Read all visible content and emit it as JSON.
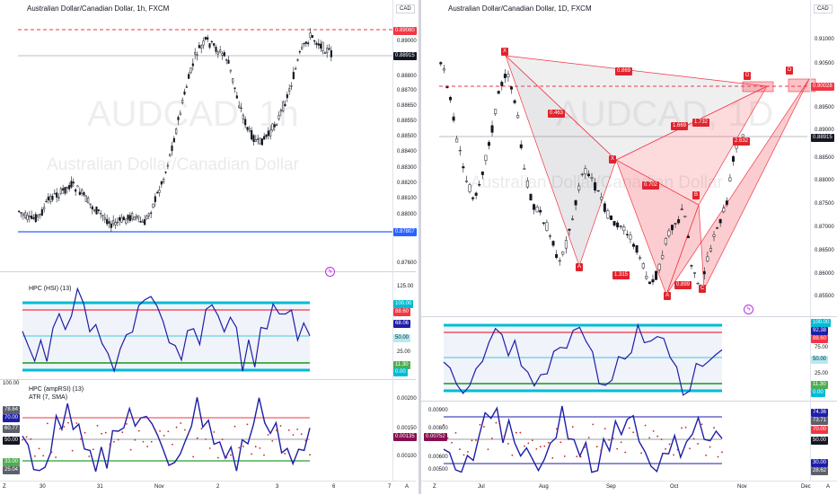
{
  "left": {
    "symbol": "Australian Dollar/Canadian Dollar, 1h, FXCM",
    "watermark": "AUDCAD, 1h",
    "watermark_sub": "Australian Dollar/Canadian Dollar",
    "currency": "CAD",
    "price_ticks": [
      "0.89000",
      "0.88900",
      "0.88800",
      "0.88700",
      "0.88650",
      "0.88550",
      "0.88500",
      "0.88400",
      "0.88300",
      "0.88200",
      "0.88100",
      "0.88000",
      "0.87900",
      "0.87800",
      "0.87600"
    ],
    "badges": {
      "resistance": "0.89080",
      "symbol_name": "AUDCAD",
      "last": "0.88915",
      "support": "0.87807"
    },
    "hsi": {
      "title": "HPC (HSI) (13)",
      "ticks": [
        "125.00",
        "25.00"
      ],
      "badges": [
        "100.00",
        "88.60",
        "68.06",
        "50.00",
        "11.30",
        "0.00"
      ]
    },
    "amp": {
      "title": "HPC (ampRSI) (13)",
      "title2": "ATR (7, SMA)",
      "ticks": [
        "100.00",
        "0.00200",
        "0.00150",
        "0.00100"
      ],
      "left_badges": [
        "78.64",
        "70.00",
        "60.77",
        "50.00",
        "33.00",
        "25.04"
      ],
      "badge": "0.00135"
    },
    "x_labels": [
      "30",
      "31",
      "Nov",
      "2",
      "3",
      "6",
      "7"
    ],
    "corner_left": "Z",
    "corner_right": "A"
  },
  "right": {
    "symbol": "Australian Dollar/Canadian Dollar, 1D, FXCM",
    "watermark": "AUDCAD, 1D",
    "watermark_sub": "Australian Dollar/Canadian Dollar",
    "currency": "CAD",
    "price_ticks": [
      "0.91000",
      "0.90500",
      "0.89500",
      "0.89000",
      "0.88500",
      "0.88000",
      "0.87500",
      "0.87000",
      "0.86500",
      "0.86000",
      "0.85500"
    ],
    "badges": {
      "level": "0.90028",
      "symbol_name": "AUDCAD",
      "last": "0.88915"
    },
    "pattern_labels": {
      "X1": "X",
      "X2": "X",
      "A1": "A",
      "A2": "A",
      "B": "B",
      "C": "C",
      "D1": "D",
      "D2": "D"
    },
    "ratios": [
      "0.869",
      "0.463",
      "1.669",
      "1.732",
      "0.702",
      "2.632",
      "1.315",
      "0.899"
    ],
    "hsi": {
      "ticks": [
        "75.00",
        "25.00",
        "0.00"
      ],
      "badges": [
        "100.00",
        "92.38",
        "88.60",
        "50.00",
        "11.30",
        "0.00"
      ]
    },
    "amp": {
      "ticks": [
        "0.00900",
        "0.00800",
        "0.00700",
        "0.00600",
        "0.00500"
      ],
      "left_badge": "0.00752",
      "badges": [
        "74.36",
        "73.71",
        "70.00",
        "50.00",
        "30.00",
        "28.62"
      ]
    },
    "x_labels": [
      "Jul",
      "Aug",
      "Sep",
      "Oct",
      "Nov",
      "Dec"
    ],
    "corner_left": "Z",
    "corner_right": "A"
  },
  "colors": {
    "bull": "#131722",
    "bear": "#131722",
    "resist": "#f23645",
    "support": "#2962ff",
    "cyan": "#00bcd4",
    "green": "#4caf50",
    "osc": "#1e1ea8",
    "harm": "#f23645"
  }
}
